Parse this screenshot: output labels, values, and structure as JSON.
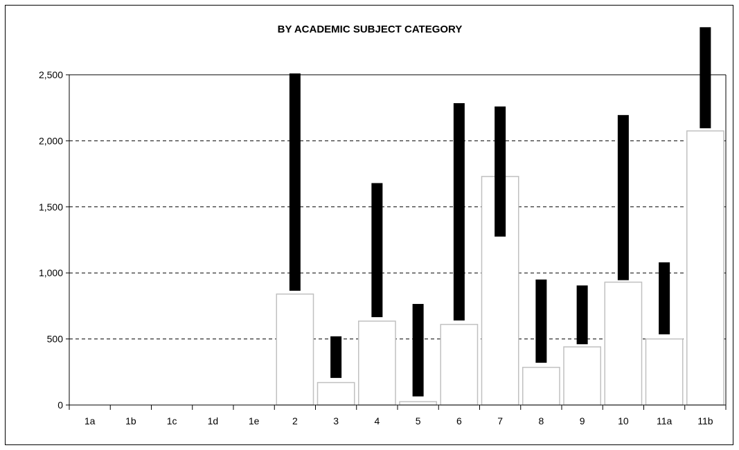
{
  "chart_data": {
    "type": "bar",
    "title": "BY ACADEMIC SUBJECT CATEGORY",
    "xlabel": "",
    "ylabel": "",
    "ylim": [
      0,
      2500
    ],
    "y_ticks": [
      0,
      500,
      1000,
      1500,
      2000,
      2500
    ],
    "y_tick_labels": [
      "0",
      "500",
      "1,000",
      "1,500",
      "2,000",
      "2,500"
    ],
    "grid": "horizontal dashed",
    "categories": [
      "1a",
      "1b",
      "1c",
      "1d",
      "1e",
      "2",
      "3",
      "4",
      "5",
      "6",
      "7",
      "8",
      "9",
      "10",
      "11a",
      "11b"
    ],
    "series": [
      {
        "kind": "bar",
        "values": [
          0,
          0,
          0,
          0,
          0,
          840,
          170,
          635,
          25,
          610,
          1730,
          285,
          440,
          930,
          500,
          2075
        ]
      },
      {
        "kind": "range",
        "low": [
          null,
          null,
          null,
          null,
          null,
          865,
          205,
          665,
          65,
          640,
          1275,
          320,
          460,
          945,
          535,
          2095
        ],
        "high": [
          null,
          null,
          null,
          null,
          null,
          2510,
          520,
          1680,
          765,
          2285,
          2260,
          950,
          905,
          2195,
          1080,
          2860
        ]
      }
    ],
    "colors": {
      "bar_fill": "#ffffff",
      "bar_edge": "#c0c0c0",
      "range": "#000000",
      "grid": "#000000"
    }
  }
}
